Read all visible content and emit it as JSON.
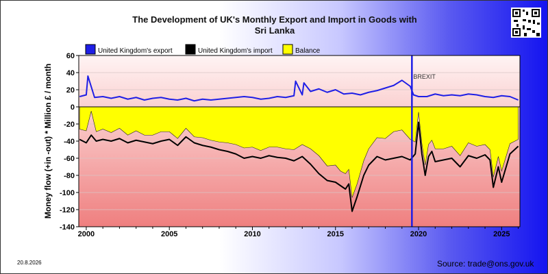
{
  "page": {
    "title_line1": "The Development of UK's Monthly Export and Import in Goods with",
    "title_line2": "Sri Lanka",
    "date": "20.8.2026",
    "source": "Source: trade@ons.gov.uk"
  },
  "chart_data": {
    "type": "line",
    "title": "The Development of UK's Monthly Export and Import in Goods with Sri Lanka",
    "ylabel": "Money flow (+in -out) * Million £ / month",
    "xlabel": "",
    "xlim": [
      1999.55,
      2026.1
    ],
    "ylim": [
      -140,
      60
    ],
    "yticks": [
      60,
      40,
      20,
      0,
      -20,
      -40,
      -60,
      -80,
      -100,
      -120,
      -140
    ],
    "xticks": [
      2000,
      2005,
      2010,
      2015,
      2020,
      2025
    ],
    "annotations": [
      {
        "text": "BREXIT",
        "x": 2019.6
      }
    ],
    "legend": [
      "United Kingdom's export",
      "United Kingdom's import",
      "Balance"
    ],
    "legend_position": "top",
    "colors": {
      "export": "#1e1ee6",
      "import": "#000000",
      "balance": "#ffff00",
      "brexit_line": "#1e1ee6"
    },
    "series": [
      {
        "name": "United Kingdom's export",
        "x": [
          1999.6,
          2000.0,
          2000.1,
          2000.5,
          2001.0,
          2001.5,
          2002.0,
          2002.5,
          2003.0,
          2003.5,
          2004.0,
          2004.5,
          2005.0,
          2005.5,
          2006.0,
          2006.5,
          2007.0,
          2007.5,
          2008.0,
          2008.5,
          2009.0,
          2009.5,
          2010.0,
          2010.5,
          2011.0,
          2011.5,
          2012.0,
          2012.5,
          2012.6,
          2013.0,
          2013.1,
          2013.5,
          2014.0,
          2014.5,
          2015.0,
          2015.5,
          2016.0,
          2016.5,
          2017.0,
          2017.5,
          2018.0,
          2018.5,
          2019.0,
          2019.5,
          2019.7,
          2020.0,
          2020.5,
          2021.0,
          2021.5,
          2022.0,
          2022.5,
          2023.0,
          2023.5,
          2024.0,
          2024.5,
          2025.0,
          2025.5,
          2026.0
        ],
        "values": [
          12,
          14,
          36,
          11,
          12,
          10,
          12,
          9,
          11,
          8,
          10,
          11,
          9,
          8,
          10,
          7,
          9,
          8,
          9,
          10,
          11,
          12,
          11,
          9,
          10,
          12,
          11,
          13,
          30,
          14,
          28,
          18,
          21,
          17,
          20,
          15,
          16,
          14,
          17,
          19,
          22,
          25,
          31,
          24,
          14,
          12,
          12,
          15,
          13,
          14,
          13,
          15,
          14,
          12,
          11,
          13,
          12,
          8
        ]
      },
      {
        "name": "United Kingdom's import",
        "x": [
          1999.6,
          2000.0,
          2000.3,
          2000.6,
          2001.0,
          2001.5,
          2002.0,
          2002.5,
          2003.0,
          2003.5,
          2004.0,
          2004.5,
          2005.0,
          2005.5,
          2006.0,
          2006.5,
          2007.0,
          2007.5,
          2008.0,
          2008.5,
          2009.0,
          2009.5,
          2010.0,
          2010.5,
          2011.0,
          2011.5,
          2012.0,
          2012.5,
          2013.0,
          2013.5,
          2014.0,
          2014.5,
          2015.0,
          2015.3,
          2015.6,
          2015.8,
          2016.0,
          2016.3,
          2016.7,
          2017.0,
          2017.5,
          2018.0,
          2018.5,
          2019.0,
          2019.5,
          2019.8,
          2020.0,
          2020.2,
          2020.4,
          2020.6,
          2020.8,
          2021.0,
          2021.5,
          2022.0,
          2022.5,
          2023.0,
          2023.5,
          2024.0,
          2024.3,
          2024.5,
          2024.8,
          2025.0,
          2025.5,
          2026.0
        ],
        "values": [
          -38,
          -42,
          -33,
          -40,
          -38,
          -40,
          -37,
          -42,
          -39,
          -41,
          -43,
          -40,
          -38,
          -45,
          -35,
          -42,
          -45,
          -47,
          -50,
          -52,
          -55,
          -60,
          -58,
          -60,
          -57,
          -59,
          -60,
          -63,
          -58,
          -67,
          -78,
          -86,
          -88,
          -92,
          -96,
          -90,
          -122,
          -105,
          -80,
          -68,
          -58,
          -62,
          -60,
          -58,
          -62,
          -55,
          -18,
          -55,
          -80,
          -58,
          -52,
          -64,
          -62,
          -60,
          -70,
          -57,
          -60,
          -56,
          -62,
          -94,
          -70,
          -88,
          -55,
          -46
        ]
      },
      {
        "name": "Balance",
        "x": [
          1999.6,
          2000.0,
          2000.3,
          2000.6,
          2001.0,
          2001.5,
          2002.0,
          2002.5,
          2003.0,
          2003.5,
          2004.0,
          2004.5,
          2005.0,
          2005.5,
          2006.0,
          2006.5,
          2007.0,
          2007.5,
          2008.0,
          2008.5,
          2009.0,
          2009.5,
          2010.0,
          2010.5,
          2011.0,
          2011.5,
          2012.0,
          2012.5,
          2013.0,
          2013.5,
          2014.0,
          2014.5,
          2015.0,
          2015.3,
          2015.6,
          2015.8,
          2016.0,
          2016.3,
          2016.7,
          2017.0,
          2017.5,
          2018.0,
          2018.5,
          2019.0,
          2019.5,
          2019.8,
          2020.0,
          2020.2,
          2020.4,
          2020.6,
          2020.8,
          2021.0,
          2021.5,
          2022.0,
          2022.5,
          2023.0,
          2023.5,
          2024.0,
          2024.3,
          2024.5,
          2024.8,
          2025.0,
          2025.5,
          2026.0
        ],
        "values": [
          -26,
          -28,
          -5,
          -29,
          -26,
          -30,
          -25,
          -33,
          -28,
          -33,
          -33,
          -29,
          -29,
          -37,
          -25,
          -35,
          -36,
          -39,
          -41,
          -42,
          -44,
          -48,
          -47,
          -51,
          -47,
          -47,
          -49,
          -50,
          -44,
          -49,
          -57,
          -69,
          -68,
          -75,
          -78,
          -73,
          -106,
          -90,
          -63,
          -49,
          -36,
          -37,
          -29,
          -27,
          -38,
          -41,
          -6,
          -43,
          -68,
          -44,
          -39,
          -49,
          -49,
          -46,
          -57,
          -42,
          -46,
          -44,
          -50,
          -82,
          -58,
          -75,
          -43,
          -38
        ]
      }
    ]
  }
}
